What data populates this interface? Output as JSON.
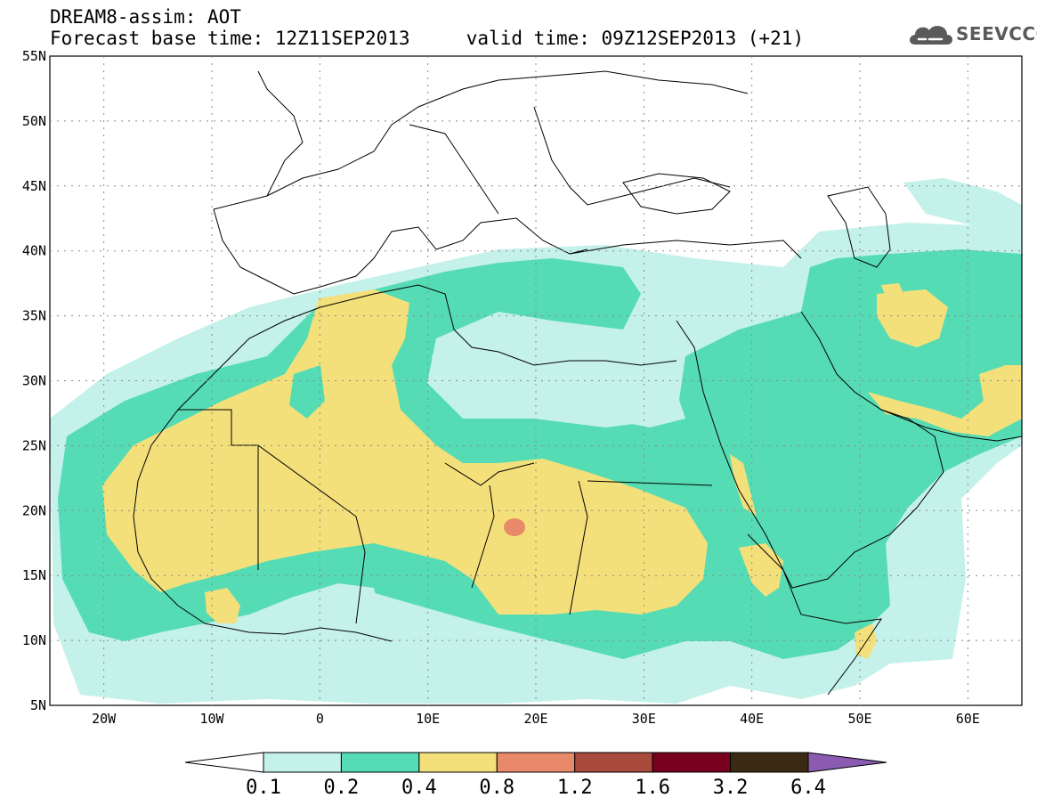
{
  "header": {
    "title_line1": "DREAM8-assim: AOT",
    "title_line2": "Forecast base time: 12Z11SEP2013     valid time: 09Z12SEP2013 (+21)",
    "logo_text": "SEEVCCC"
  },
  "map": {
    "lon_range": [
      -25,
      65
    ],
    "lat_range": [
      5,
      55
    ],
    "lat_labels": [
      "55N",
      "50N",
      "45N",
      "40N",
      "35N",
      "30N",
      "25N",
      "20N",
      "15N",
      "10N",
      "5N"
    ],
    "lon_labels": [
      "20W",
      "10W",
      "0",
      "10E",
      "20E",
      "30E",
      "40E",
      "50E",
      "60E"
    ],
    "gridlines": "dotted"
  },
  "colorbar": {
    "labels": [
      "0.1",
      "0.2",
      "0.4",
      "0.8",
      "1.2",
      "1.6",
      "3.2",
      "6.4"
    ],
    "colors": [
      "#ffffff",
      "#c4f1ea",
      "#56dcb4",
      "#f4e07a",
      "#e8896a",
      "#a94a3c",
      "#7a0020",
      "#3a2a14",
      "#8a5bb0"
    ]
  },
  "colors": {
    "light_cyan": "#c4f1ea",
    "green": "#56dcb4",
    "yellow": "#f4e07a",
    "salmon": "#e8896a"
  }
}
